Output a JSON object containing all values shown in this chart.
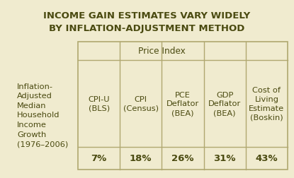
{
  "title_line1": "INCOME GAIN ESTIMATES VARY WIDELY",
  "title_line2": "BY INFLATION-ADJUSTMENT METHOD",
  "background_color": "#f0ebcf",
  "border_color": "#b0a870",
  "row_label_lines": [
    "Inflation-",
    "Adjusted",
    "Median",
    "Household",
    "Income",
    "Growth",
    "(1976–2006)"
  ],
  "col_headers_group": "Price Index",
  "col_headers": [
    [
      "CPI-U",
      "(BLS)"
    ],
    [
      "CPI",
      "(Census)"
    ],
    [
      "PCE",
      "Deflator",
      "(BEA)"
    ],
    [
      "GDP",
      "Deflator",
      "(BEA)"
    ],
    [
      "Cost of",
      "Living",
      "Estimate",
      "(Boskin)"
    ]
  ],
  "values": [
    "7%",
    "18%",
    "26%",
    "31%",
    "43%"
  ],
  "title_fontsize": 9.5,
  "header_fontsize": 8.2,
  "value_fontsize": 9.5,
  "row_label_fontsize": 8.2,
  "text_color": "#4a4a10",
  "grid_color": "#a09860",
  "price_index_cols": 4
}
